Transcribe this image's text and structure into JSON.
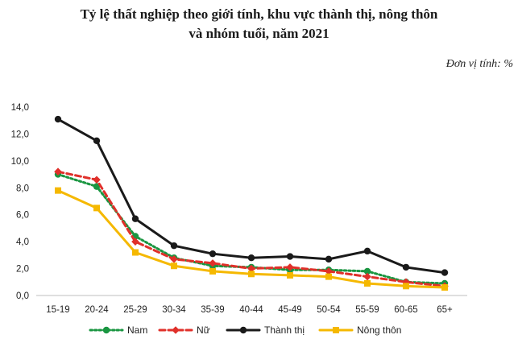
{
  "chart_data": {
    "type": "line",
    "title_line1": "Tỷ lệ thất nghiệp theo giới tính, khu vực thành thị, nông thôn",
    "title_line2": "và nhóm tuổi, năm 2021",
    "unit_label": "Đơn vị tính: %",
    "categories": [
      "15-19",
      "20-24",
      "25-29",
      "30-34",
      "35-39",
      "40-44",
      "45-49",
      "50-54",
      "55-59",
      "60-65",
      "65+"
    ],
    "y_ticks": [
      "0,0",
      "2,0",
      "4,0",
      "6,0",
      "8,0",
      "10,0",
      "12,0",
      "14,0"
    ],
    "ylim": [
      0,
      14
    ],
    "series": [
      {
        "name": "Nam",
        "color": "#1a9641",
        "style": "dotted",
        "marker": "circle",
        "values": [
          9.0,
          8.1,
          4.4,
          2.8,
          2.2,
          2.1,
          1.9,
          1.9,
          1.8,
          1.0,
          0.9
        ]
      },
      {
        "name": "Nữ",
        "color": "#e0302a",
        "style": "dashed",
        "marker": "diamond",
        "values": [
          9.2,
          8.6,
          4.0,
          2.7,
          2.4,
          2.0,
          2.1,
          1.8,
          1.4,
          1.0,
          0.7
        ]
      },
      {
        "name": "Thành thị",
        "color": "#1a1a1a",
        "style": "solid",
        "marker": "circle",
        "values": [
          13.1,
          11.5,
          5.7,
          3.7,
          3.1,
          2.8,
          2.9,
          2.7,
          3.3,
          2.1,
          1.7
        ]
      },
      {
        "name": "Nông thôn",
        "color": "#f5b800",
        "style": "solid",
        "marker": "square",
        "values": [
          7.8,
          6.5,
          3.2,
          2.2,
          1.8,
          1.6,
          1.5,
          1.4,
          0.9,
          0.7,
          0.6
        ]
      }
    ]
  }
}
